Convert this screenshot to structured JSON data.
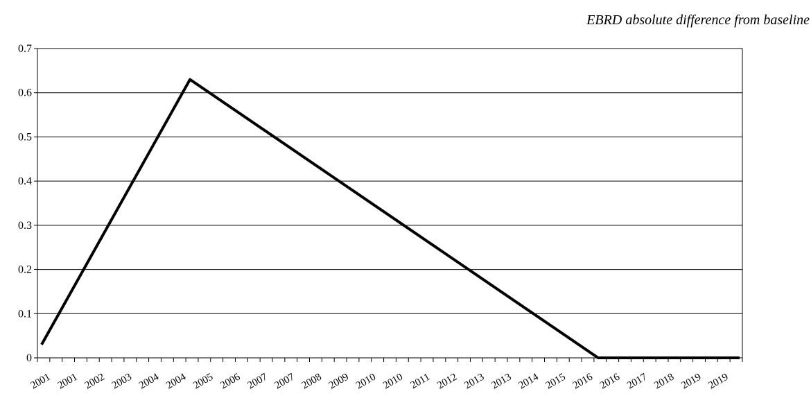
{
  "chart_data": {
    "type": "line",
    "title": "EBRD absolute difference from baseline",
    "xlabel": "",
    "ylabel": "",
    "ylim": [
      0,
      0.7
    ],
    "y_ticks": [
      "0",
      "0.1",
      "0.2",
      "0.3",
      "0.4",
      "0.5",
      "0.6",
      "0.7"
    ],
    "x_tick_labels": [
      "2001",
      "2001",
      "2002",
      "2003",
      "2004",
      "2004",
      "2005",
      "2006",
      "2007",
      "2007",
      "2008",
      "2009",
      "2010",
      "2010",
      "2011",
      "2012",
      "2013",
      "2013",
      "2014",
      "2015",
      "2016",
      "2016",
      "2017",
      "2018",
      "2019",
      "2019"
    ],
    "grid": true,
    "legend": "none",
    "series": [
      {
        "color": "#000000",
        "points": [
          {
            "x": "2001",
            "y": 0.03
          },
          {
            "x": "2005",
            "y": 0.63
          },
          {
            "x": "2016",
            "y": 0.0
          },
          {
            "x": "2019",
            "y": 0.0
          }
        ]
      }
    ]
  }
}
